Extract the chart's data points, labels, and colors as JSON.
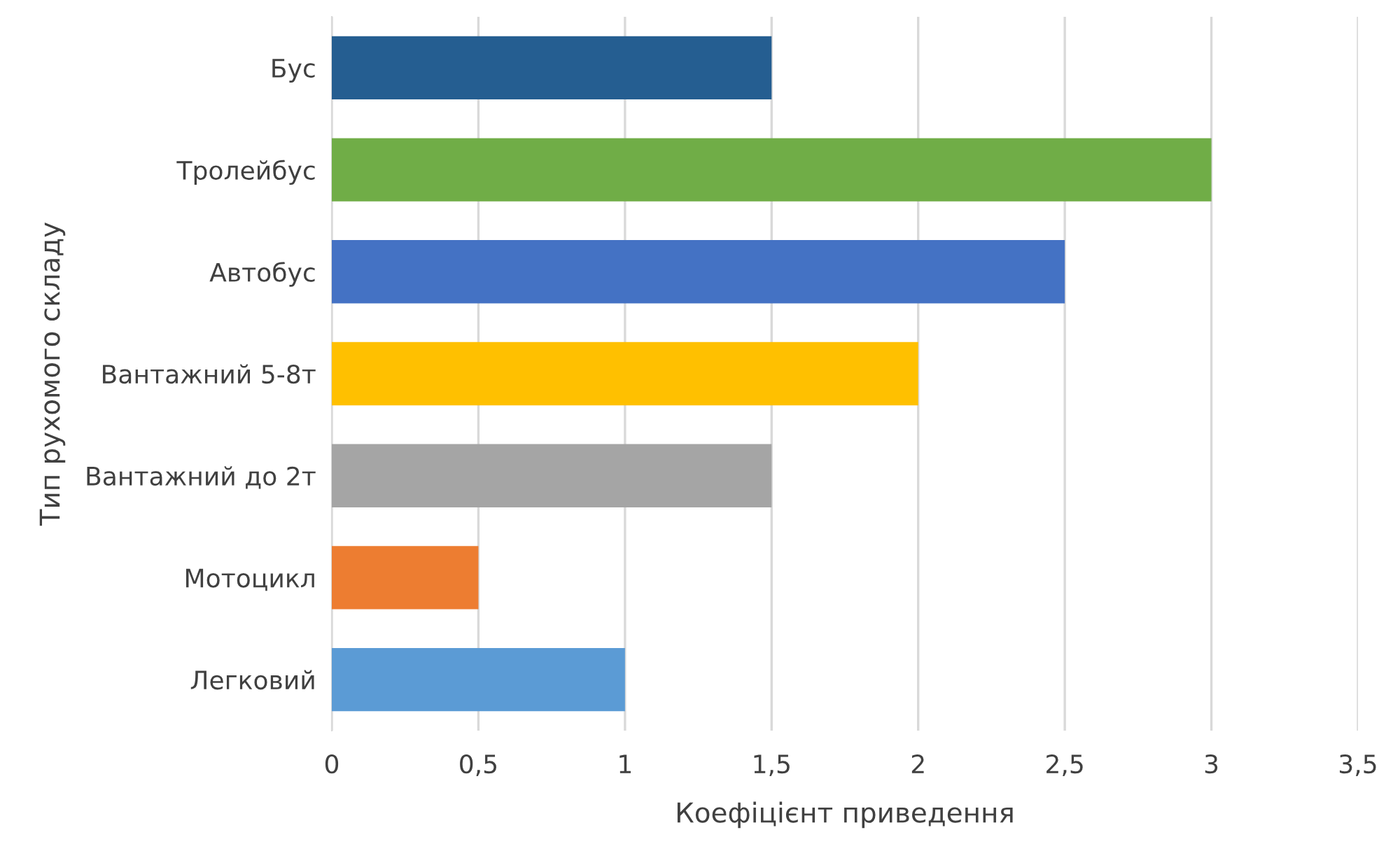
{
  "chart_data": {
    "type": "bar",
    "orientation": "horizontal",
    "xlabel": "Коефіцієнт приведення",
    "ylabel": "Тип рухомого складу",
    "categories": [
      "Бус",
      "Тролейбус",
      "Автобус",
      "Вантажний 5-8т",
      "Вантажний до 2т",
      "Мотоцикл",
      "Легковий"
    ],
    "values": [
      1.5,
      3,
      2.5,
      2,
      1.5,
      0.5,
      1
    ],
    "colors": [
      "#255e91",
      "#70ad47",
      "#4472c4",
      "#ffc000",
      "#a5a5a5",
      "#ed7d31",
      "#5b9bd5"
    ],
    "xlim": [
      0,
      3.5
    ],
    "xticks": [
      0,
      {
        "value": 0.5,
        "label": "0,5"
      },
      1,
      {
        "value": 1.5,
        "label": "1,5"
      },
      2,
      {
        "value": 2.5,
        "label": "2,5"
      },
      3,
      {
        "value": 3.5,
        "label": "3,5"
      }
    ],
    "grid": "x"
  }
}
